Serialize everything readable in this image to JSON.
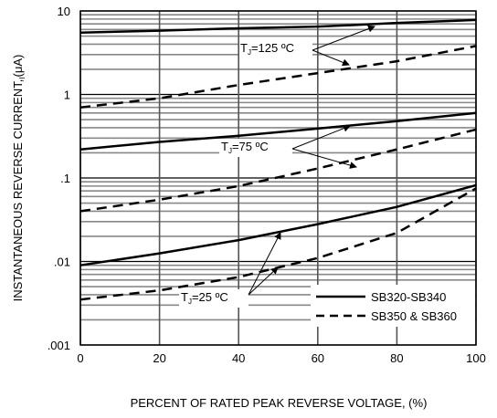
{
  "chart_data": {
    "type": "line",
    "xlabel": "PERCENT OF RATED PEAK REVERSE VOLTAGE, (%)",
    "ylabel": "INSTANTANEOUS REVERSE CURRENT,(μA)",
    "ylabel_main": "INSTANTANEOUS REVERSE CURRENT,",
    "ylabel_sub": "I",
    "ylabel_unit": "(μA)",
    "x_scale": "linear",
    "y_scale": "log",
    "xlim": [
      0,
      100
    ],
    "ylim": [
      0.001,
      10
    ],
    "x_ticks": [
      "0",
      "20",
      "40",
      "60",
      "80",
      "100"
    ],
    "x_tick_values": [
      0,
      20,
      40,
      60,
      80,
      100
    ],
    "y_ticks": [
      ".001",
      ".01",
      ".1",
      "1",
      "10"
    ],
    "y_tick_values": [
      0.001,
      0.01,
      0.1,
      1,
      10
    ],
    "grid": true,
    "legend_position": "bottom-right",
    "legend": [
      {
        "label": "SB320-SB340",
        "style": "solid"
      },
      {
        "label": "SB350 & SB360",
        "style": "dashed"
      }
    ],
    "annotations": [
      {
        "prefix": "T",
        "sub": "J",
        "suffix": "=125 ºC"
      },
      {
        "prefix": "T",
        "sub": "J",
        "suffix": "=75 ºC"
      },
      {
        "prefix": "T",
        "sub": "J",
        "suffix": "=25 ºC"
      }
    ],
    "series": [
      {
        "style": "solid",
        "x": [
          0,
          20,
          40,
          60,
          70,
          80,
          100
        ],
        "y": [
          5.5,
          5.8,
          6.2,
          6.5,
          6.8,
          7.2,
          7.8
        ]
      },
      {
        "style": "dashed",
        "x": [
          0,
          20,
          40,
          60,
          80,
          100
        ],
        "y": [
          0.7,
          0.9,
          1.3,
          1.8,
          2.5,
          3.8
        ]
      },
      {
        "style": "solid",
        "x": [
          0,
          20,
          40,
          60,
          80,
          100
        ],
        "y": [
          0.22,
          0.27,
          0.32,
          0.39,
          0.48,
          0.6
        ]
      },
      {
        "style": "dashed",
        "x": [
          0,
          20,
          40,
          60,
          80,
          100
        ],
        "y": [
          0.04,
          0.055,
          0.08,
          0.13,
          0.22,
          0.38
        ]
      },
      {
        "style": "solid",
        "x": [
          0,
          20,
          40,
          60,
          80,
          100
        ],
        "y": [
          0.009,
          0.0125,
          0.018,
          0.028,
          0.045,
          0.082
        ]
      },
      {
        "style": "dashed",
        "x": [
          0,
          20,
          40,
          60,
          80,
          100
        ],
        "y": [
          0.0035,
          0.0045,
          0.0065,
          0.011,
          0.022,
          0.075
        ]
      }
    ]
  }
}
